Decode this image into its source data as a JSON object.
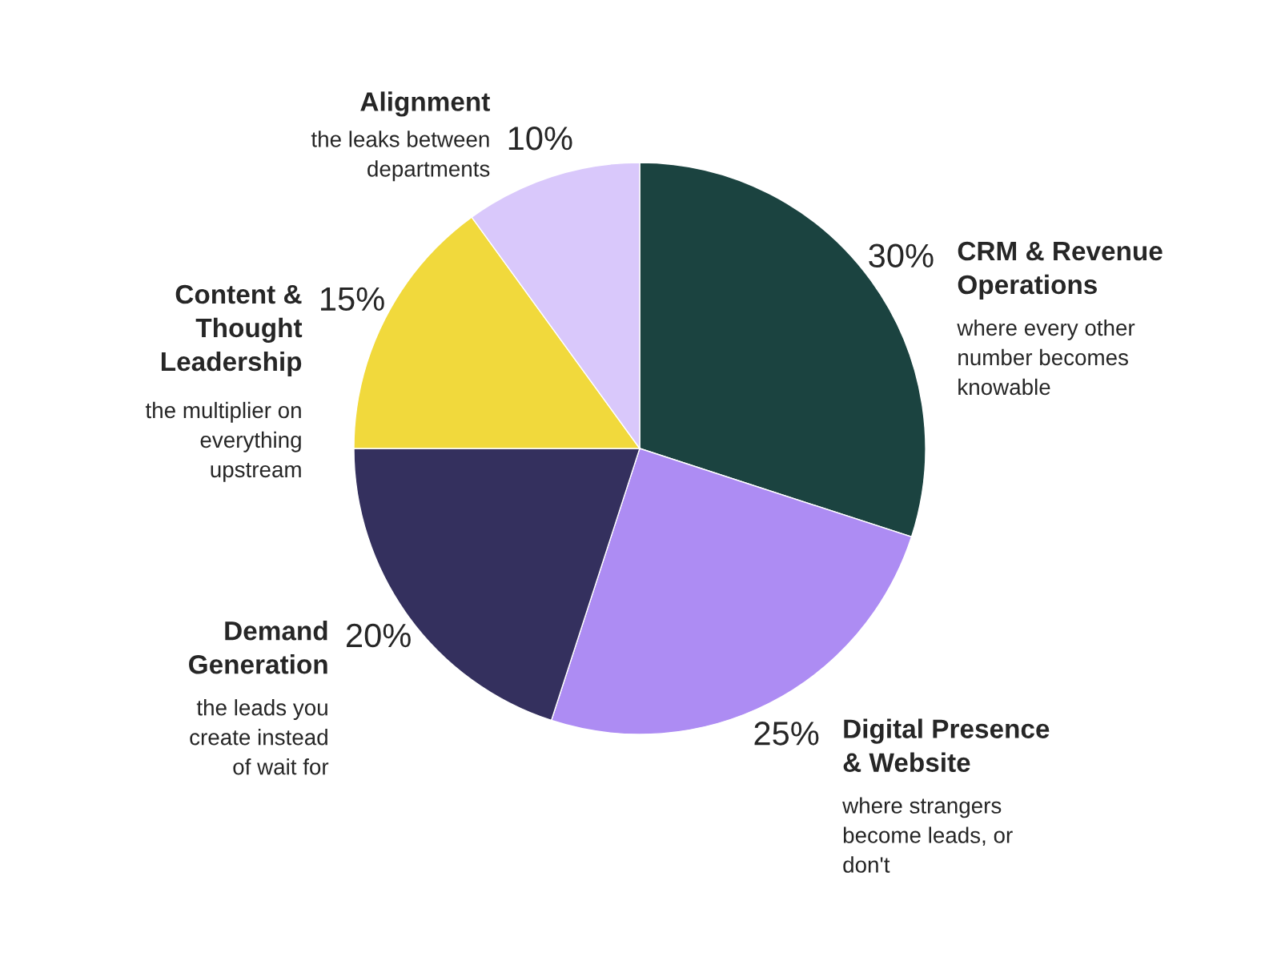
{
  "chart_data": {
    "type": "pie",
    "categories": [
      "CRM & Revenue\nOperations",
      "Digital Presence\n& Website",
      "Demand\nGeneration",
      "Content &\nThought\nLeadership",
      "Alignment"
    ],
    "values": [
      30,
      25,
      20,
      15,
      10
    ],
    "value_labels": [
      "30%",
      "25%",
      "20%",
      "15%",
      "10%"
    ],
    "colors": [
      "#1b4340",
      "#ad8cf3",
      "#34305e",
      "#f1d93c",
      "#d9c8fb"
    ],
    "annotations": [
      "where every other\nnumber becomes\nknowable",
      "where strangers\nbecome leads, or\ndon't",
      "the leads you\ncreate instead\nof wait for",
      "the multiplier on\neverything\nupstream",
      "the leaks between\ndepartments"
    ],
    "legend": false
  }
}
